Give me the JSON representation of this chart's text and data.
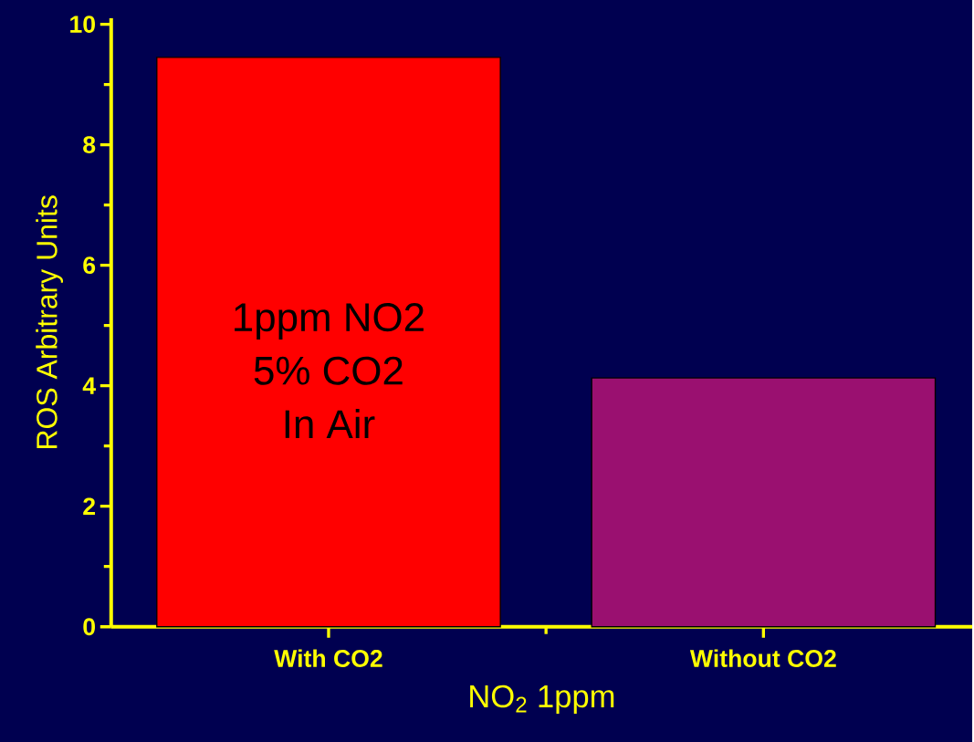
{
  "chart_data": {
    "type": "bar",
    "categories": [
      "With CO2",
      "Without CO2"
    ],
    "values": [
      9.45,
      4.13
    ],
    "colors": [
      "#ff0000",
      "#9a1070"
    ],
    "xlabel": "NO$_{2}$ 1ppm",
    "ylabel": "ROS Arbitrary Units",
    "ylim": [
      0,
      10.1
    ],
    "yticks": [
      0,
      2,
      4,
      6,
      8,
      10
    ],
    "annotations": [
      "1ppm NO2",
      "5% CO2",
      "In Air"
    ],
    "grid": false
  }
}
